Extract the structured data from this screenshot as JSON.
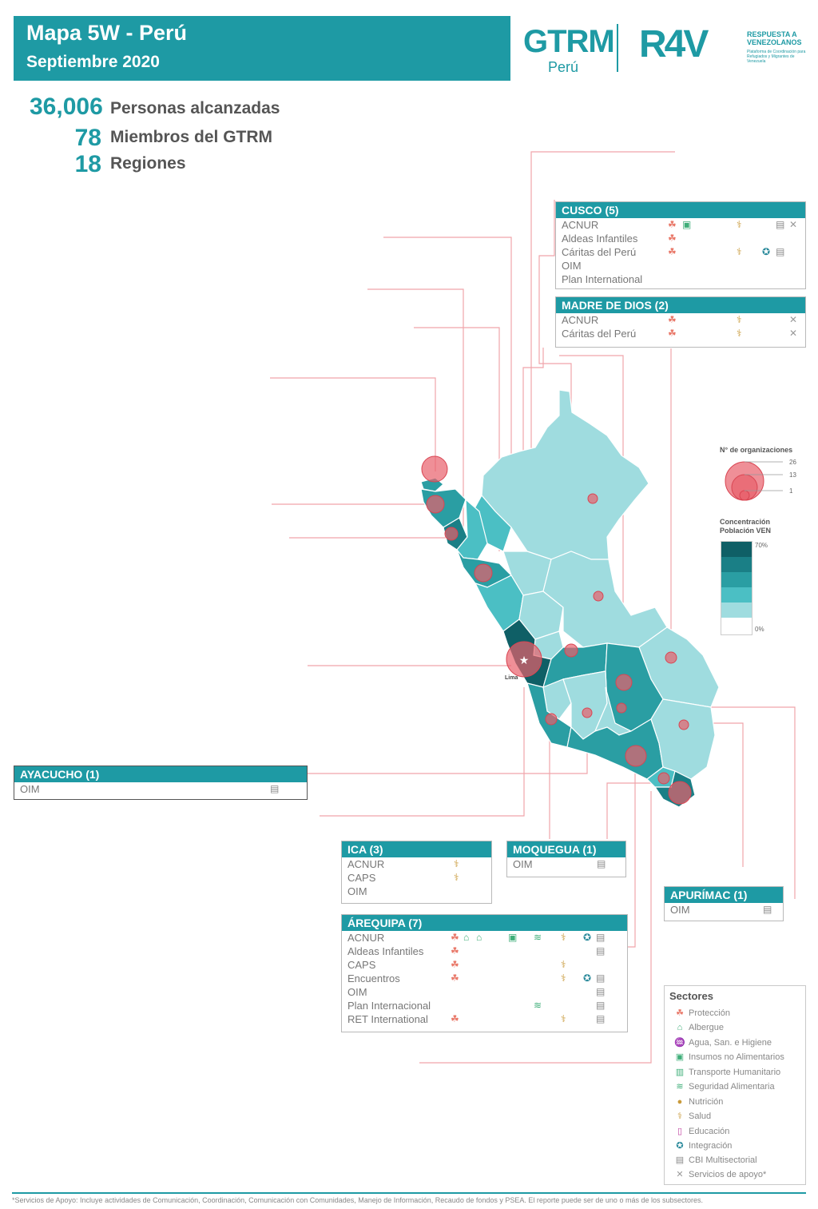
{
  "header": {
    "title": "Mapa 5W - Perú",
    "subtitle": "Septiembre 2020"
  },
  "logos": {
    "gtrm": "GTRM",
    "gtrm_sub": "Perú",
    "r4v": "R4V",
    "r4v_title": "RESPUESTA A VENEZOLANOS",
    "r4v_sub": "Plataforma de Coordinación para Refugiados y Migrantes de Venezuela"
  },
  "stats": [
    {
      "value": "36,006",
      "label": "Personas alcanzadas"
    },
    {
      "value": "78",
      "label": "Miembros del GTRM"
    },
    {
      "value": "18",
      "label": "Regiones"
    }
  ],
  "colors": {
    "accent": "#1e9aa4",
    "circle": "#e8606b",
    "line": "#f0a5aa"
  },
  "map": {
    "capital_label": "Lima",
    "regions_choropleth": [
      "#9fdcdf",
      "#4bbfc4",
      "#2a9ea3",
      "#1a7f86",
      "#0f5f66"
    ]
  },
  "panels": {
    "cusco": {
      "title": "CUSCO (5)",
      "orgs": [
        "ACNUR",
        "Aldeas Infantiles",
        "Cáritas del Perú",
        "OIM",
        "Plan International"
      ]
    },
    "madre_de_dios": {
      "title": "MADRE DE DIOS (2)",
      "orgs": [
        "ACNUR",
        "Cáritas del Perú"
      ]
    },
    "ayacucho": {
      "title": "AYACUCHO (1)",
      "orgs": [
        "OIM"
      ]
    },
    "ica": {
      "title": "ICA (3)",
      "orgs": [
        "ACNUR",
        "CAPS",
        "OIM"
      ]
    },
    "moquegua": {
      "title": "MOQUEGUA (1)",
      "orgs": [
        "OIM"
      ]
    },
    "apurimac": {
      "title": "APURÍMAC (1)",
      "orgs": [
        "OIM"
      ]
    },
    "arequipa": {
      "title": "ÁREQUIPA (7)",
      "orgs": [
        "ACNUR",
        "Aldeas Infantiles",
        "CAPS",
        "Encuentros",
        "OIM",
        "Plan Internacional",
        "RET International"
      ]
    }
  },
  "legend_size": {
    "title": "N° de organizaciones",
    "values": [
      "26",
      "13",
      "1"
    ]
  },
  "legend_conc": {
    "title": "Concentración Población VEN",
    "max": "70%",
    "min": "0%"
  },
  "sectores": {
    "title": "Sectores",
    "items": [
      {
        "icon": "proteccion-icon",
        "label": "Protección"
      },
      {
        "icon": "albergue-icon",
        "label": "Albergue"
      },
      {
        "icon": "agua-icon",
        "label": "Agua, San. e Higiene"
      },
      {
        "icon": "insumos-icon",
        "label": "Insumos no Alimentarios"
      },
      {
        "icon": "transporte-icon",
        "label": "Transporte Humanitario"
      },
      {
        "icon": "seguridad-alimentaria-icon",
        "label": "Seguridad Alimentaria"
      },
      {
        "icon": "nutricion-icon",
        "label": "Nutrición"
      },
      {
        "icon": "salud-icon",
        "label": "Salud"
      },
      {
        "icon": "educacion-icon",
        "label": "Educación"
      },
      {
        "icon": "integracion-icon",
        "label": "Integración"
      },
      {
        "icon": "cbi-icon",
        "label": "CBI Multisectorial"
      },
      {
        "icon": "servicios-apoyo-icon",
        "label": "Servicios de apoyo*"
      }
    ]
  },
  "footnote": "*Servicios de Apoyo: Incluye actividades de Comunicación, Coordinación, Comunicación con Comunidades, Manejo de Información, Recaudo de fondos y PSEA. El reporte puede ser de uno o más de los subsectores."
}
